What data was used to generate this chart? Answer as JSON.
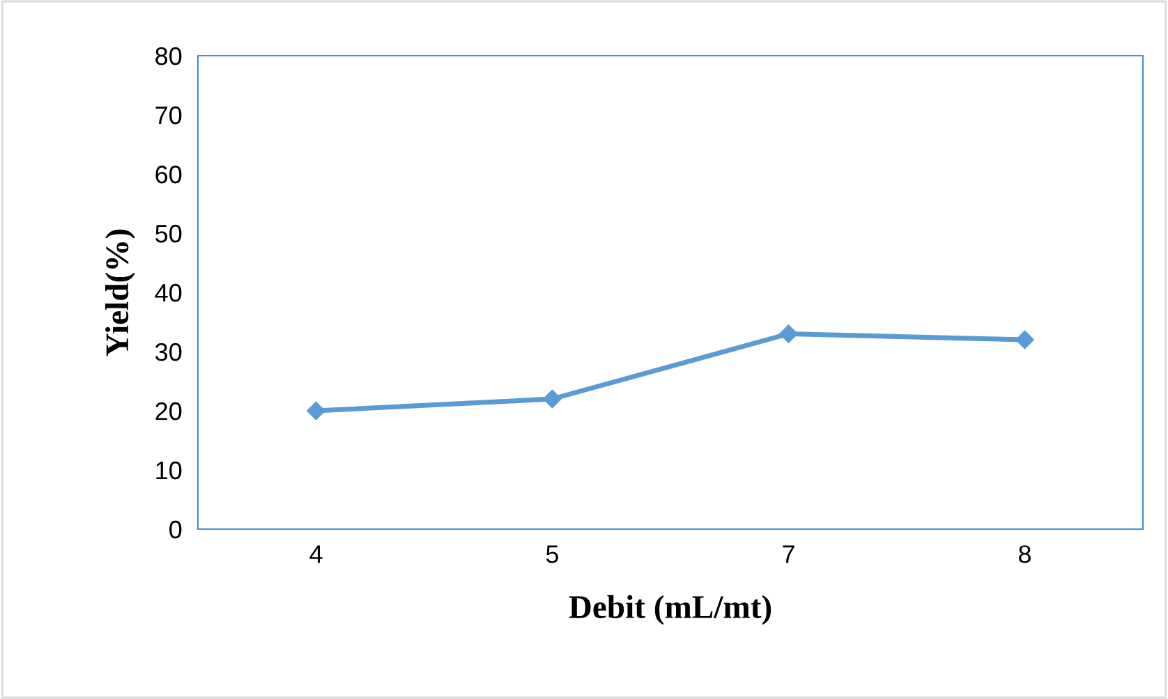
{
  "chart_data": {
    "type": "line",
    "xlabel": "Debit (mL/mt)",
    "ylabel": "Yield(%)",
    "categories": [
      "4",
      "5",
      "7",
      "8"
    ],
    "series": [
      {
        "color": "#5b9bd5",
        "values": [
          20,
          22,
          33,
          32
        ]
      }
    ],
    "ylim": [
      0,
      80
    ],
    "yticks": [
      0,
      10,
      20,
      30,
      40,
      50,
      60,
      70,
      80
    ],
    "marker": "diamond",
    "line_style": "solid",
    "grid": false
  }
}
